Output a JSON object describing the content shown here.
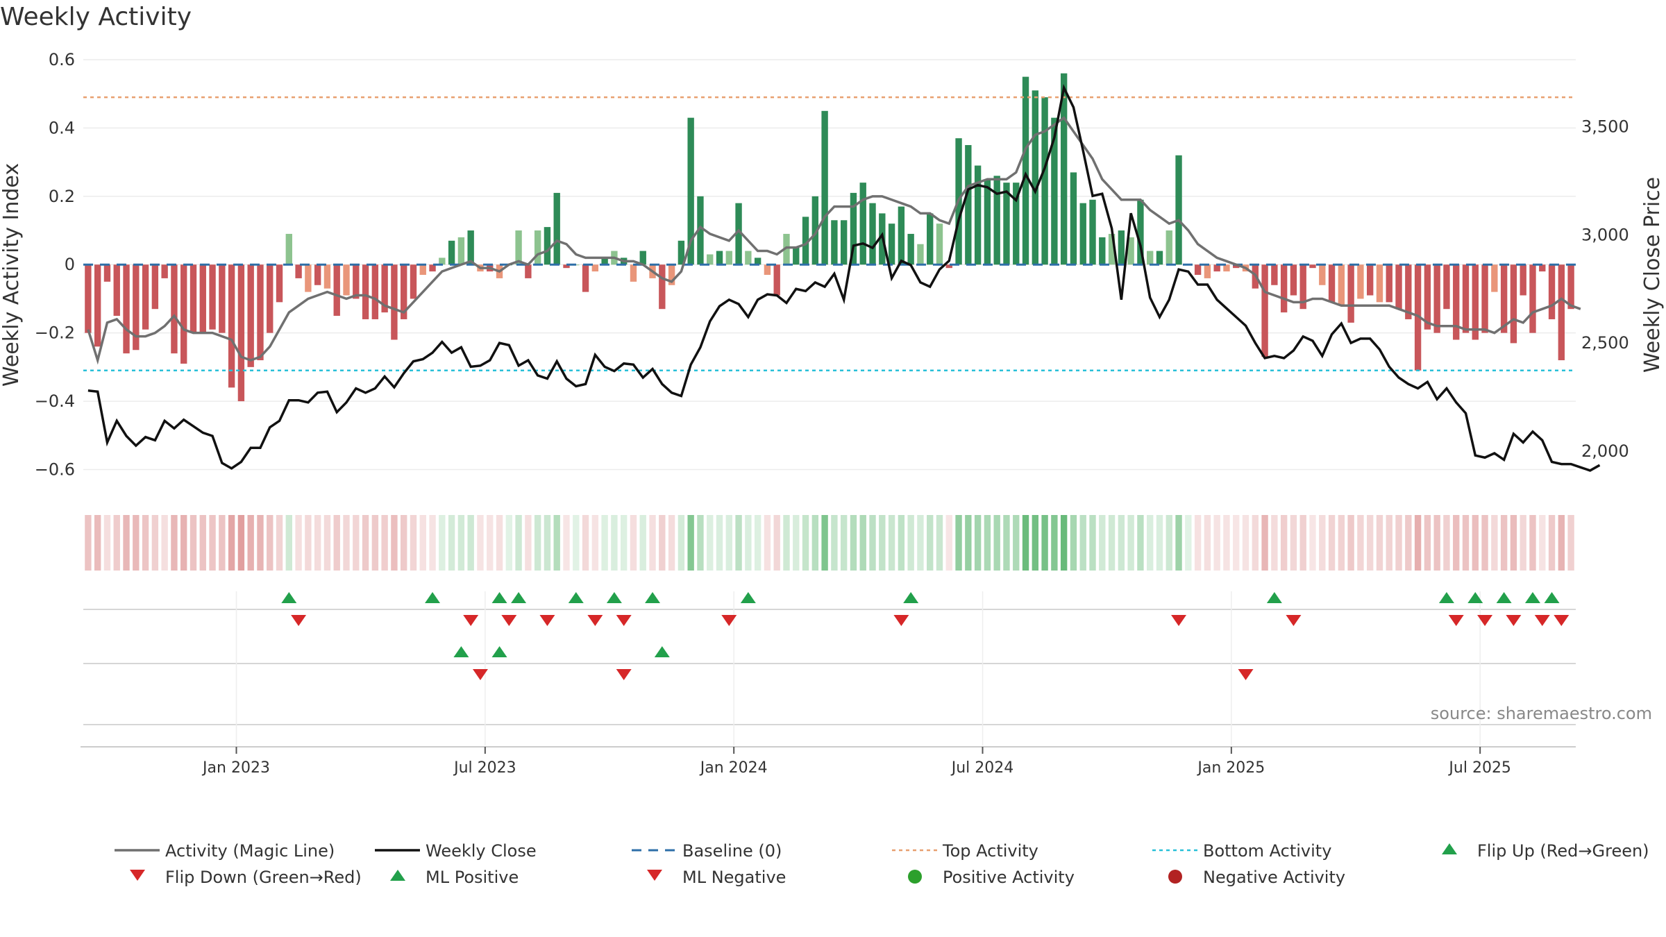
{
  "chart_data": {
    "type": "bar",
    "title": "Weekly Activity",
    "source": "source: sharemaestro.com",
    "ylabel_left": "Weekly Activity Index",
    "ylabel_right": "Weekly Close Price",
    "left_axis": {
      "ylim": [
        -0.66,
        0.6
      ],
      "ticks": [
        0.6,
        0.4,
        0.2,
        0,
        -0.2,
        -0.4,
        -0.6
      ],
      "tick_labels": [
        "0.6",
        "0.4",
        "0.2",
        "0",
        "−0.2",
        "−0.4",
        "−0.6"
      ]
    },
    "right_axis": {
      "ylim": [
        1820,
        3810
      ],
      "ticks": [
        3500,
        3000,
        2500,
        2000
      ],
      "tick_labels": [
        "3,500",
        "3,000",
        "2,500",
        "2,000"
      ]
    },
    "x_axis": {
      "start": "2022-09-19",
      "weeks": 156,
      "ticks": [
        {
          "label": "Jan 2023",
          "week": 16
        },
        {
          "label": "Jul 2023",
          "week": 42
        },
        {
          "label": "Jan 2024",
          "week": 68
        },
        {
          "label": "Jul 2024",
          "week": 94
        },
        {
          "label": "Jan 2025",
          "week": 120
        },
        {
          "label": "Jul 2025",
          "week": 146
        }
      ]
    },
    "top_activity": 0.49,
    "bottom_activity": -0.31,
    "baseline": 0,
    "series": [
      {
        "name": "Weekly Activity Index",
        "values": [
          -0.2,
          -0.24,
          -0.05,
          -0.15,
          -0.26,
          -0.25,
          -0.19,
          -0.13,
          -0.04,
          -0.26,
          -0.29,
          -0.2,
          -0.2,
          -0.19,
          -0.2,
          -0.36,
          -0.4,
          -0.3,
          -0.28,
          -0.2,
          -0.11,
          0.09,
          -0.04,
          -0.08,
          -0.06,
          -0.07,
          -0.15,
          -0.09,
          -0.1,
          -0.16,
          -0.16,
          -0.14,
          -0.22,
          -0.16,
          -0.1,
          -0.03,
          -0.02,
          0.02,
          0.07,
          0.08,
          0.1,
          -0.02,
          -0.02,
          -0.04,
          0.0,
          0.1,
          -0.04,
          0.1,
          0.11,
          0.21,
          -0.01,
          0.0,
          -0.08,
          -0.02,
          0.02,
          0.04,
          0.02,
          -0.05,
          0.04,
          -0.04,
          -0.13,
          -0.06,
          0.07,
          0.43,
          0.2,
          0.03,
          0.04,
          0.04,
          0.18,
          0.04,
          0.02,
          -0.03,
          -0.09,
          0.09,
          0.05,
          0.14,
          0.2,
          0.45,
          0.13,
          0.13,
          0.21,
          0.24,
          0.18,
          0.15,
          0.12,
          0.17,
          0.09,
          0.06,
          0.15,
          0.12,
          -0.01,
          0.37,
          0.35,
          0.29,
          0.25,
          0.26,
          0.24,
          0.24,
          0.55,
          0.51,
          0.49,
          0.43,
          0.56,
          0.27,
          0.18,
          0.19,
          0.08,
          0.09,
          0.1,
          0.08,
          0.19,
          0.04,
          0.04,
          0.1,
          0.32,
          0.0,
          -0.03,
          -0.04,
          -0.02,
          -0.02,
          -0.01,
          -0.02,
          -0.07,
          -0.27,
          -0.06,
          -0.14,
          -0.09,
          -0.13,
          -0.01,
          -0.06,
          -0.11,
          -0.12,
          -0.17,
          -0.1,
          -0.09,
          -0.11,
          -0.11,
          -0.13,
          -0.16,
          -0.31,
          -0.19,
          -0.2,
          -0.13,
          -0.22,
          -0.2,
          -0.22,
          -0.2,
          -0.08,
          -0.2,
          -0.23,
          -0.09,
          -0.2,
          -0.02,
          -0.16,
          -0.28,
          -0.13
        ]
      },
      {
        "name": "Activity (Magic Line)",
        "values": [
          -0.19,
          -0.28,
          -0.17,
          -0.16,
          -0.19,
          -0.21,
          -0.21,
          -0.2,
          -0.18,
          -0.15,
          -0.19,
          -0.2,
          -0.2,
          -0.2,
          -0.21,
          -0.22,
          -0.27,
          -0.28,
          -0.27,
          -0.24,
          -0.19,
          -0.14,
          -0.12,
          -0.1,
          -0.09,
          -0.08,
          -0.09,
          -0.1,
          -0.09,
          -0.09,
          -0.1,
          -0.12,
          -0.13,
          -0.14,
          -0.11,
          -0.08,
          -0.05,
          -0.02,
          -0.01,
          0.0,
          0.01,
          -0.01,
          -0.01,
          -0.02,
          0.0,
          0.01,
          0.0,
          0.03,
          0.04,
          0.07,
          0.06,
          0.03,
          0.02,
          0.02,
          0.02,
          0.02,
          0.01,
          0.01,
          0.0,
          -0.02,
          -0.04,
          -0.05,
          -0.02,
          0.07,
          0.11,
          0.09,
          0.08,
          0.07,
          0.1,
          0.07,
          0.04,
          0.04,
          0.03,
          0.05,
          0.05,
          0.06,
          0.09,
          0.14,
          0.17,
          0.17,
          0.17,
          0.19,
          0.2,
          0.2,
          0.19,
          0.18,
          0.17,
          0.15,
          0.15,
          0.13,
          0.12,
          0.19,
          0.23,
          0.24,
          0.25,
          0.25,
          0.25,
          0.27,
          0.34,
          0.38,
          0.39,
          0.41,
          0.43,
          0.39,
          0.35,
          0.31,
          0.25,
          0.22,
          0.19,
          0.19,
          0.19,
          0.16,
          0.14,
          0.12,
          0.13,
          0.1,
          0.06,
          0.04,
          0.02,
          0.01,
          0.0,
          -0.01,
          -0.03,
          -0.08,
          -0.09,
          -0.1,
          -0.11,
          -0.11,
          -0.1,
          -0.1,
          -0.11,
          -0.12,
          -0.12,
          -0.12,
          -0.12,
          -0.12,
          -0.12,
          -0.13,
          -0.14,
          -0.15,
          -0.17,
          -0.18,
          -0.18,
          -0.18,
          -0.19,
          -0.19,
          -0.19,
          -0.2,
          -0.18,
          -0.16,
          -0.17,
          -0.14,
          -0.13,
          -0.12,
          -0.1,
          -0.12,
          -0.13
        ]
      },
      {
        "name": "Weekly Close",
        "values": [
          2280,
          2275,
          2040,
          2140,
          2070,
          2025,
          2065,
          2050,
          2140,
          2105,
          2145,
          2115,
          2085,
          2070,
          1945,
          1920,
          1950,
          2015,
          2015,
          2110,
          2140,
          2235,
          2235,
          2225,
          2270,
          2275,
          2180,
          2225,
          2290,
          2270,
          2290,
          2345,
          2295,
          2360,
          2415,
          2425,
          2455,
          2505,
          2455,
          2480,
          2390,
          2395,
          2420,
          2500,
          2490,
          2395,
          2420,
          2350,
          2335,
          2415,
          2335,
          2300,
          2310,
          2445,
          2390,
          2370,
          2405,
          2400,
          2340,
          2380,
          2310,
          2270,
          2255,
          2400,
          2480,
          2600,
          2670,
          2700,
          2680,
          2620,
          2700,
          2725,
          2720,
          2685,
          2750,
          2740,
          2780,
          2760,
          2820,
          2700,
          2950,
          2960,
          2940,
          3000,
          2800,
          2880,
          2860,
          2780,
          2760,
          2840,
          2880,
          3070,
          3210,
          3230,
          3220,
          3190,
          3200,
          3160,
          3280,
          3200,
          3310,
          3450,
          3680,
          3590,
          3390,
          3180,
          3190,
          3030,
          2700,
          3100,
          2950,
          2710,
          2620,
          2700,
          2840,
          2830,
          2770,
          2770,
          2700,
          2660,
          2620,
          2580,
          2500,
          2430,
          2440,
          2430,
          2465,
          2530,
          2510,
          2440,
          2540,
          2590,
          2500,
          2520,
          2520,
          2470,
          2390,
          2340,
          2310,
          2290,
          2320,
          2240,
          2290,
          2225,
          2175,
          1980,
          1970,
          1990,
          1960,
          2080,
          2040,
          2090,
          2050,
          1950,
          1940,
          1940,
          1925,
          1910,
          1935
        ]
      },
      {
        "name": "Flip Up (Red→Green)",
        "weeks": [
          21,
          36,
          43,
          45,
          51,
          55,
          59,
          69,
          86,
          124,
          142,
          145,
          148,
          151,
          153
        ]
      },
      {
        "name": "Flip Down (Green→Red)",
        "weeks": [
          22,
          40,
          44,
          48,
          53,
          56,
          67,
          85,
          114,
          126,
          143,
          146,
          149,
          152,
          154
        ]
      },
      {
        "name": "ML Positive",
        "weeks": [
          39,
          43,
          60
        ]
      },
      {
        "name": "ML Negative",
        "weeks": [
          41,
          56,
          121
        ]
      }
    ],
    "legend": [
      {
        "label": "Activity (Magic Line)",
        "icon": "grey-line"
      },
      {
        "label": "Weekly Close",
        "icon": "black-line"
      },
      {
        "label": "Baseline (0)",
        "icon": "blue-dashed-line"
      },
      {
        "label": "Top Activity",
        "icon": "orange-dotted-line"
      },
      {
        "label": "Bottom Activity",
        "icon": "cyan-dotted-line"
      },
      {
        "label": "Flip Up (Red→Green)",
        "icon": "green-up-triangle"
      },
      {
        "label": "Flip Down (Green→Red)",
        "icon": "red-down-triangle"
      },
      {
        "label": "ML Positive",
        "icon": "green-up-triangle"
      },
      {
        "label": "ML Negative",
        "icon": "red-down-triangle"
      },
      {
        "label": "Positive Activity",
        "icon": "green-dot"
      },
      {
        "label": "Negative Activity",
        "icon": "red-dot"
      }
    ],
    "colors": {
      "magic_line": "#707070",
      "weekly_close": "#111111",
      "baseline": "#2e6fa8",
      "top_activity": "#e8a070",
      "bottom_activity": "#28c0d8",
      "pos_dark": "#2e8b57",
      "pos_light": "#8dc38f",
      "neg_dark": "#c8565a",
      "neg_light": "#e9967a",
      "flip_up": "#22a04b",
      "flip_down": "#d62728",
      "pos_dot": "#2ca02c",
      "neg_dot": "#b22222"
    }
  }
}
